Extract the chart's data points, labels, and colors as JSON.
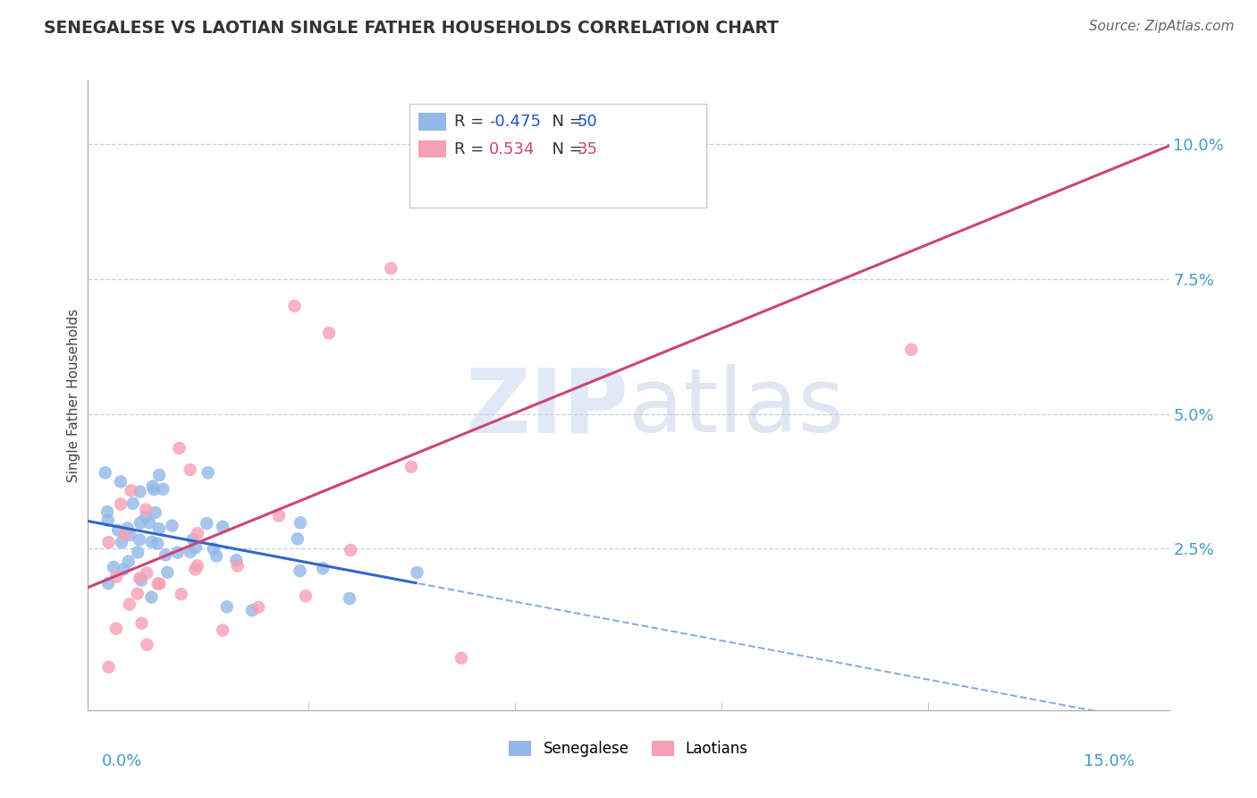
{
  "title": "SENEGALESE VS LAOTIAN SINGLE FATHER HOUSEHOLDS CORRELATION CHART",
  "source": "Source: ZipAtlas.com",
  "ylabel": "Single Father Households",
  "ytick_labels": [
    "2.5%",
    "5.0%",
    "7.5%",
    "10.0%"
  ],
  "ytick_values": [
    0.025,
    0.05,
    0.075,
    0.1
  ],
  "xlim": [
    -0.002,
    0.155
  ],
  "ylim": [
    -0.005,
    0.112
  ],
  "senegalese_R": -0.475,
  "senegalese_N": 50,
  "laotian_R": 0.534,
  "laotian_N": 35,
  "senegalese_color": "#93b8e8",
  "laotian_color": "#f5a0b5",
  "senegalese_line_color": "#3366cc",
  "laotian_line_color": "#cc4477",
  "watermark_color": "#d0dff0",
  "background_color": "#ffffff",
  "grid_color": "#c0cfe8",
  "legend_R_color": "#2255bb",
  "legend_lao_R_color": "#cc4477",
  "tick_label_color": "#4499cc"
}
